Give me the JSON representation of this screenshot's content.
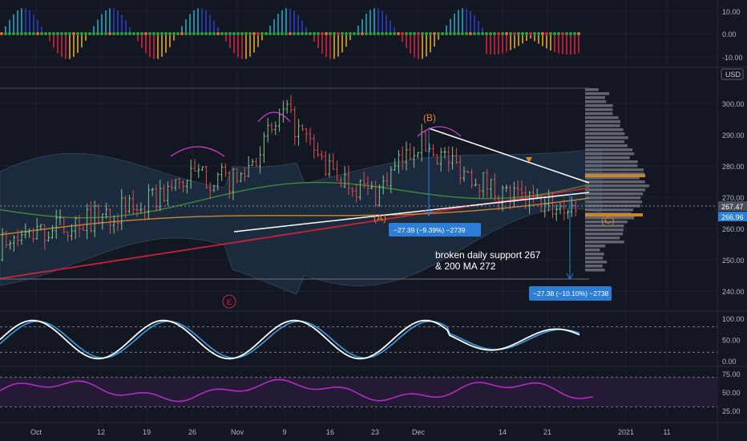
{
  "colors": {
    "background": "#131722",
    "grid": "#1e222d",
    "up_candle": "#86c28e",
    "down_candle": "#e0504e",
    "bb_fill": "#1f3147",
    "ma_orange": "#c9852e",
    "ma_green": "#3f8a3a",
    "ma_red": "#c8223a",
    "trendline": "#ffffff",
    "measure_box": "#2c7fd4",
    "stoch_k": "#ffffff",
    "stoch_d": "#3c9ee0",
    "rsi_line": "#b02dc1",
    "rsi_band": "#241a35",
    "vp_bar": "#6f737c",
    "vp_poc": "#c9852e"
  },
  "price_axis": {
    "currency": "USD",
    "ticks": [
      "300.00",
      "290.00",
      "280.00",
      "270.00",
      "260.00",
      "250.00",
      "240.00"
    ],
    "last_price_label": "267.47",
    "current_price_label": "266.96"
  },
  "oscillator_axis": {
    "ticks": [
      "10.00",
      "0.00",
      "-10.00"
    ]
  },
  "stoch_axis": {
    "ticks": [
      "100.00",
      "50.00",
      "0.00"
    ]
  },
  "rsi_axis": {
    "ticks": [
      "75.00",
      "50.00",
      "25.00"
    ]
  },
  "time_axis": {
    "ticks": [
      "Oct",
      "12",
      "19",
      "26",
      "Nov",
      "9",
      "16",
      "23",
      "Dec",
      "14",
      "21",
      "2021",
      "11"
    ]
  },
  "annotations": {
    "wave_b": "(B)",
    "wave_a": "(A)",
    "wave_c": "(C)",
    "wave_e": "E",
    "measure_1": "−27.39 (−9.39%) −2739",
    "measure_2": "−27.38 (−10.10%) −2738",
    "note_line1": "broken daily support 267",
    "note_line2": "& 200 MA 272"
  },
  "chart_data": {
    "type": "line",
    "title": "",
    "xlabel": "",
    "ylabel": "",
    "x": [
      "Oct",
      "12",
      "19",
      "26",
      "Nov",
      "9",
      "16",
      "23",
      "Dec",
      "14",
      "21"
    ],
    "ylim": [
      236,
      306
    ],
    "series": [
      {
        "values": [
          255,
          264,
          268,
          277,
          275,
          297,
          278,
          271,
          288,
          271,
          267
        ]
      }
    ],
    "subplots": {
      "stochastic": {
        "ylim": [
          0,
          100
        ],
        "levels": [
          80,
          20
        ]
      },
      "rsi": {
        "ylim": [
          25,
          75
        ],
        "levels": [
          70,
          30
        ]
      }
    }
  }
}
